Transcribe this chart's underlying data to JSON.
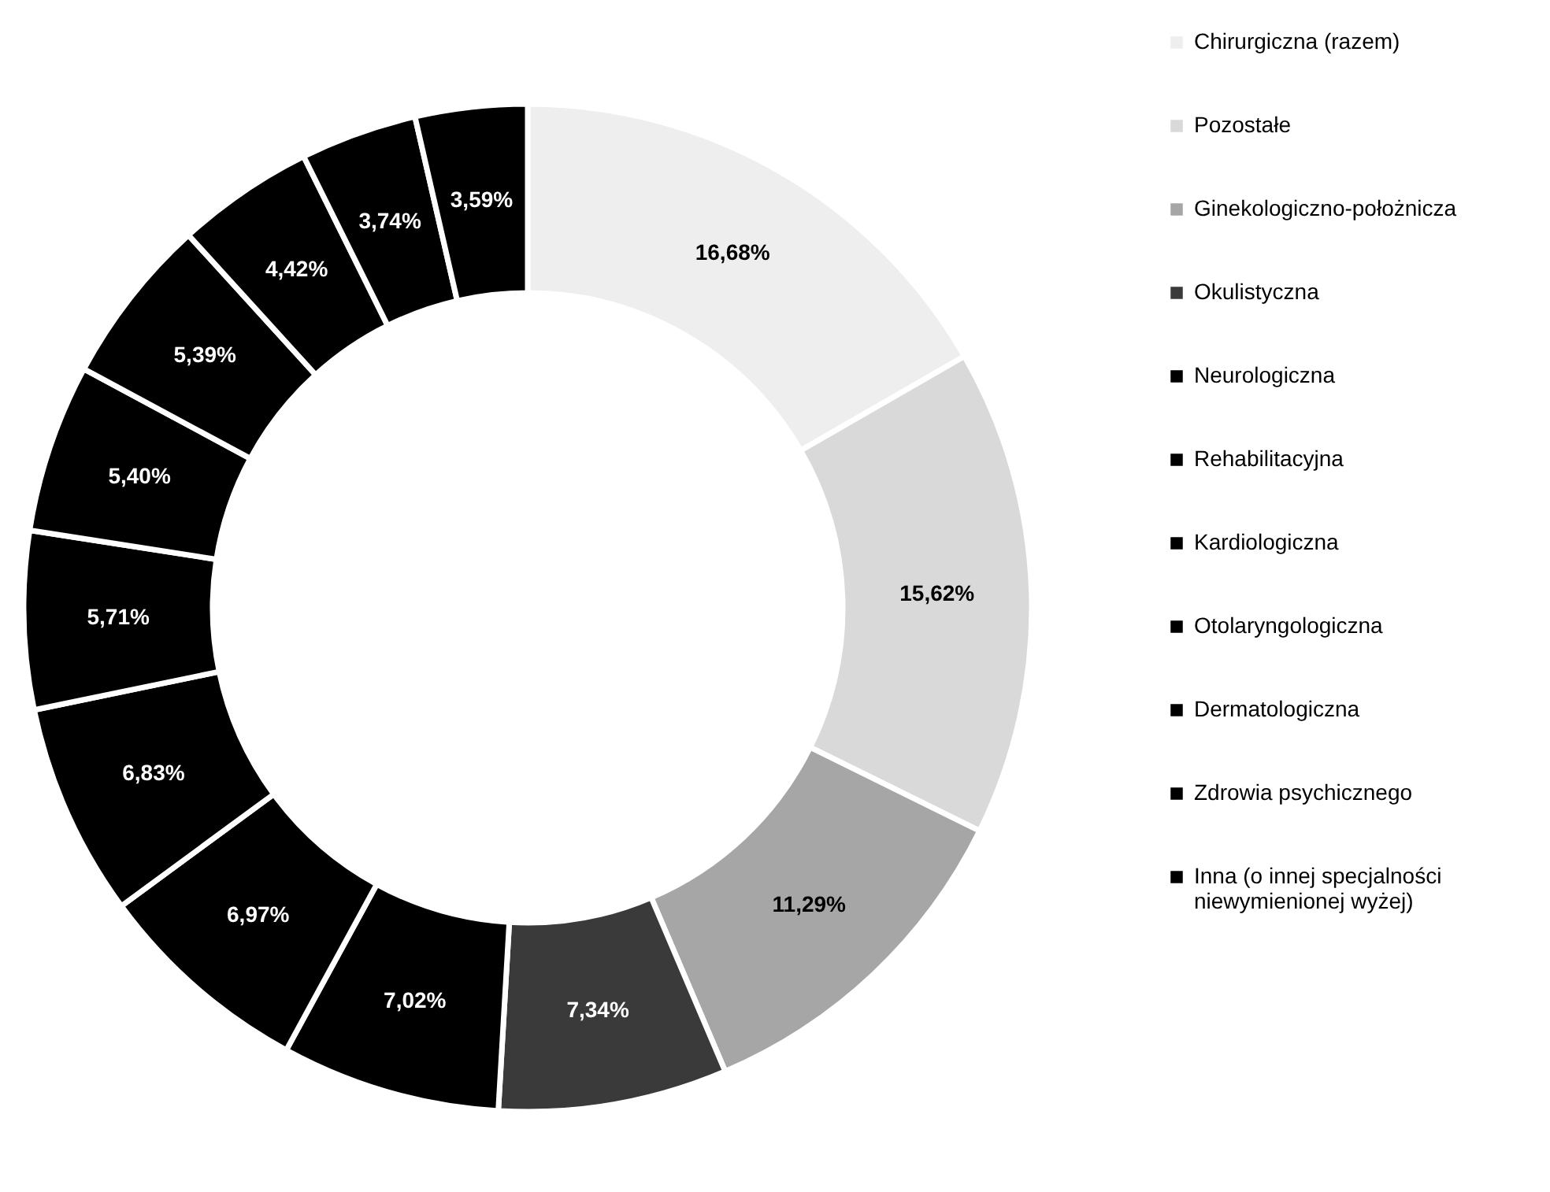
{
  "chart_data": {
    "type": "donut",
    "categories": [
      "Chirurgiczna (razem)",
      "Pozostałe",
      "Ginekologiczno-położnicza",
      "Okulistyczna",
      "Neurologiczna",
      "Rehabilitacyjna",
      "Kardiologiczna",
      "Otolaryngologiczna",
      "Dermatologiczna",
      "Zdrowia psychicznego",
      "Inna (o innej specjalności niewymienionej wyżej)",
      null,
      null
    ],
    "values": [
      16.68,
      15.62,
      11.29,
      7.34,
      7.02,
      6.97,
      6.83,
      5.71,
      5.4,
      5.39,
      4.42,
      3.74,
      3.59
    ],
    "colors": [
      "#eeeeee",
      "#d9d9d9",
      "#a6a6a6",
      "#3a3a3a",
      "#000000",
      "#000000",
      "#000000",
      "#000000",
      "#000000",
      "#000000",
      "#000000",
      "#000000",
      "#000000"
    ],
    "value_labels": [
      "16,68%",
      "15,62%",
      "11,29%",
      "7,34%",
      "7,02%",
      "6,97%",
      "6,83%",
      "5,71%",
      "5,40%",
      "5,39%",
      "4,42%",
      "3,74%",
      "3,59%"
    ],
    "legend": "right"
  }
}
